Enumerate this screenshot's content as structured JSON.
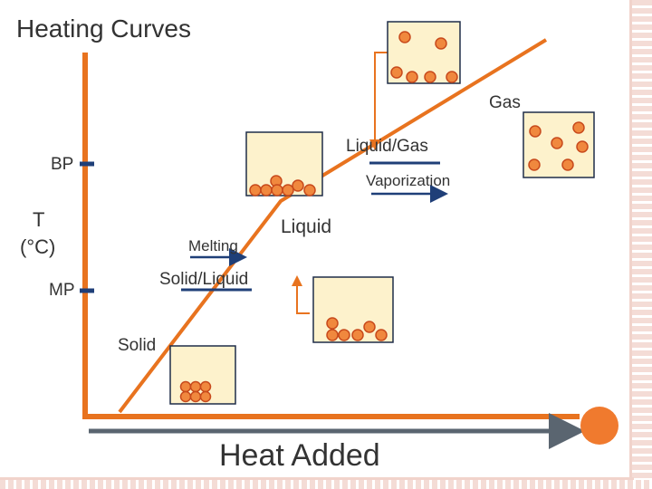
{
  "title": "Heating Curves",
  "x_axis_label": "Heat Added",
  "y_axis_label_line1": "T",
  "y_axis_label_line2": "(°C)",
  "ticks": {
    "bp": "BP",
    "mp": "MP"
  },
  "phases": {
    "solid": "Solid",
    "solid_liquid": "Solid/Liquid",
    "liquid": "Liquid",
    "liquid_gas": "Liquid/Gas",
    "gas": "Gas"
  },
  "processes": {
    "melting": "Melting",
    "vaporization": "Vaporization"
  },
  "colors": {
    "curve": "#e8731f",
    "axis": "#e8731f",
    "heat_arrow": "#5a6570",
    "tick": "#1f3f78",
    "process_arrow": "#1f3f78",
    "particle_fill": "#f0883e",
    "particle_stroke": "#c84a1c",
    "box_fill": "#fdf2cc",
    "box_stroke": "#1f2d48",
    "pointer": "#e8731f"
  }
}
